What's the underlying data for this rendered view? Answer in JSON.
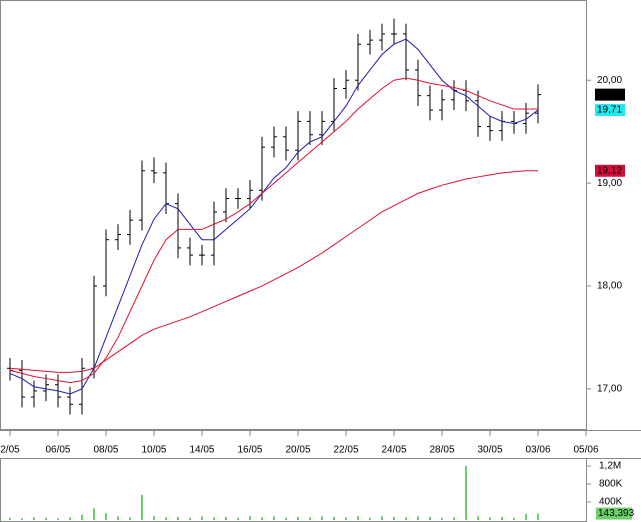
{
  "chart_data": [
    {
      "type": "ohlc",
      "x": [
        0,
        1,
        2,
        3,
        4,
        5,
        6,
        7,
        8,
        9,
        10,
        11,
        12,
        13,
        14,
        15,
        16,
        17,
        18,
        19,
        20,
        21,
        22,
        23,
        24,
        25,
        26,
        27,
        28,
        29,
        30,
        31,
        32,
        33,
        34,
        35,
        36,
        37,
        38,
        39,
        40,
        41,
        42,
        43,
        44
      ],
      "open": [
        17.2,
        17.18,
        16.92,
        16.98,
        17.04,
        16.92,
        16.85,
        17.2,
        18.0,
        18.45,
        18.5,
        18.64,
        19.12,
        19.1,
        18.8,
        18.37,
        18.3,
        18.3,
        18.72,
        18.85,
        18.85,
        18.93,
        19.35,
        19.45,
        19.32,
        19.6,
        19.47,
        19.6,
        19.92,
        20.0,
        20.35,
        20.39,
        20.45,
        20.45,
        20.1,
        19.85,
        19.71,
        19.81,
        19.9,
        19.8,
        19.55,
        19.51,
        19.6,
        19.58,
        19.68
      ],
      "high": [
        17.3,
        17.28,
        17.08,
        17.14,
        17.14,
        17.02,
        17.3,
        18.1,
        18.55,
        18.6,
        18.74,
        19.22,
        19.25,
        19.2,
        18.9,
        18.47,
        18.4,
        18.82,
        18.95,
        18.95,
        19.03,
        19.45,
        19.55,
        19.55,
        19.7,
        19.7,
        19.7,
        20.02,
        20.1,
        20.45,
        20.49,
        20.55,
        20.6,
        20.55,
        20.2,
        19.95,
        19.91,
        20.0,
        20.0,
        19.9,
        19.65,
        19.7,
        19.7,
        19.78,
        19.96
      ],
      "low": [
        17.08,
        16.82,
        16.82,
        16.88,
        16.82,
        16.75,
        16.75,
        17.1,
        17.9,
        18.35,
        18.4,
        18.54,
        19.0,
        18.7,
        18.27,
        18.2,
        18.2,
        18.2,
        18.62,
        18.75,
        18.75,
        18.83,
        19.25,
        19.22,
        19.22,
        19.37,
        19.37,
        19.5,
        19.82,
        19.9,
        20.25,
        20.29,
        20.35,
        20.0,
        19.75,
        19.61,
        19.61,
        19.71,
        19.7,
        19.45,
        19.41,
        19.41,
        19.48,
        19.48,
        19.58
      ],
      "close": [
        17.18,
        16.92,
        16.98,
        17.04,
        16.92,
        16.85,
        17.2,
        18.0,
        18.45,
        18.5,
        18.64,
        19.12,
        19.1,
        18.8,
        18.37,
        18.3,
        18.3,
        18.72,
        18.85,
        18.85,
        18.93,
        19.35,
        19.45,
        19.32,
        19.6,
        19.47,
        19.6,
        19.92,
        20.0,
        20.35,
        20.39,
        20.45,
        20.45,
        20.1,
        19.85,
        19.71,
        19.81,
        19.9,
        19.8,
        19.55,
        19.51,
        19.6,
        19.58,
        19.68,
        19.86
      ],
      "color": "#000000",
      "series": [
        {
          "color": "#1c1cb0",
          "values": [
            17.15,
            17.1,
            17.02,
            17.0,
            16.98,
            16.95,
            17.0,
            17.2,
            17.5,
            17.8,
            18.1,
            18.4,
            18.65,
            18.8,
            18.75,
            18.6,
            18.45,
            18.45,
            18.55,
            18.65,
            18.75,
            18.9,
            19.05,
            19.15,
            19.3,
            19.4,
            19.45,
            19.6,
            19.75,
            19.95,
            20.1,
            20.25,
            20.35,
            20.4,
            20.3,
            20.15,
            20.0,
            19.9,
            19.85,
            19.75,
            19.65,
            19.6,
            19.58,
            19.62,
            19.71
          ]
        },
        {
          "color": "#e0102f",
          "values": [
            17.18,
            17.15,
            17.12,
            17.1,
            17.08,
            17.06,
            17.08,
            17.15,
            17.3,
            17.5,
            17.75,
            18.0,
            18.25,
            18.45,
            18.55,
            18.55,
            18.55,
            18.6,
            18.65,
            18.72,
            18.8,
            18.9,
            19.0,
            19.1,
            19.2,
            19.3,
            19.4,
            19.5,
            19.6,
            19.72,
            19.82,
            19.92,
            20.0,
            20.02,
            20.0,
            19.97,
            19.95,
            19.93,
            19.9,
            19.85,
            19.8,
            19.76,
            19.72,
            19.72,
            19.72
          ]
        },
        {
          "color": "#e0102f",
          "values": [
            17.2,
            17.19,
            17.18,
            17.17,
            17.16,
            17.16,
            17.17,
            17.2,
            17.28,
            17.36,
            17.44,
            17.52,
            17.58,
            17.62,
            17.66,
            17.7,
            17.75,
            17.8,
            17.85,
            17.9,
            17.95,
            18.0,
            18.06,
            18.12,
            18.18,
            18.25,
            18.32,
            18.4,
            18.48,
            18.56,
            18.64,
            18.72,
            18.78,
            18.84,
            18.9,
            18.94,
            18.98,
            19.01,
            19.04,
            19.06,
            19.08,
            19.1,
            19.11,
            19.12,
            19.12
          ]
        }
      ],
      "xlim": [
        -0.8333,
        48.0833
      ],
      "xticks": [
        {
          "value": 0,
          "label": "2/05"
        },
        {
          "value": 4,
          "label": "06/05"
        },
        {
          "value": 8,
          "label": "08/05"
        },
        {
          "value": 12,
          "label": "10/05"
        },
        {
          "value": 16,
          "label": "14/05"
        },
        {
          "value": 20,
          "label": "16/05"
        },
        {
          "value": 24,
          "label": "20/05"
        },
        {
          "value": 28,
          "label": "22/05"
        },
        {
          "value": 32,
          "label": "24/05"
        },
        {
          "value": 36,
          "label": "28/05"
        },
        {
          "value": 40,
          "label": "30/05"
        },
        {
          "value": 44,
          "label": "03/06"
        },
        {
          "value": 48,
          "label": "05/06"
        }
      ],
      "ylim": [
        16.6,
        20.78
      ],
      "yticks": [
        {
          "value": 17,
          "label": "17,00"
        },
        {
          "value": 18,
          "label": "18,00"
        },
        {
          "value": 19,
          "label": "19,00"
        },
        {
          "value": 20,
          "label": "20,00"
        }
      ],
      "price_labels": [
        {
          "value": 19.86,
          "label": "19,86",
          "color": "#000000"
        },
        {
          "value": 19.71,
          "label": "19,71",
          "color": "#22e8f0"
        },
        {
          "value": 19.12,
          "label": "19,12",
          "color": "#d0103a"
        }
      ]
    },
    {
      "type": "bar",
      "x": [
        0,
        1,
        2,
        3,
        4,
        5,
        6,
        7,
        8,
        9,
        10,
        11,
        12,
        13,
        14,
        15,
        16,
        17,
        18,
        19,
        20,
        21,
        22,
        23,
        24,
        25,
        26,
        27,
        28,
        29,
        30,
        31,
        32,
        33,
        34,
        35,
        36,
        37,
        38,
        39,
        40,
        41,
        42,
        43,
        44
      ],
      "values": [
        50000,
        40000,
        60000,
        50000,
        40000,
        60000,
        120000,
        260000,
        150000,
        80000,
        60000,
        560000,
        90000,
        60000,
        70000,
        50000,
        80000,
        60000,
        70000,
        50000,
        90000,
        60000,
        80000,
        50000,
        70000,
        60000,
        80000,
        70000,
        60000,
        90000,
        50000,
        80000,
        70000,
        60000,
        80000,
        70000,
        50000,
        60000,
        1200000,
        80000,
        60000,
        70000,
        50000,
        140000,
        143393
      ],
      "value_labels": [
        null,
        null,
        null,
        null,
        null,
        null,
        null,
        null,
        null,
        null,
        null,
        null,
        null,
        null,
        null,
        null,
        null,
        null,
        null,
        null,
        null,
        null,
        null,
        null,
        null,
        null,
        null,
        null,
        null,
        null,
        null,
        null,
        null,
        null,
        null,
        null,
        null,
        null,
        null,
        null,
        null,
        null,
        null,
        null,
        "143,393"
      ],
      "color": "#6ccf6c",
      "xlim": [
        -0.8333,
        48.0833
      ],
      "ylim": [
        -44444,
        1377778
      ],
      "yticks": [
        {
          "value": 400000,
          "label": "400K"
        },
        {
          "value": 800000,
          "label": "800K"
        },
        {
          "value": 1200000,
          "label": "1,2M"
        }
      ]
    }
  ]
}
